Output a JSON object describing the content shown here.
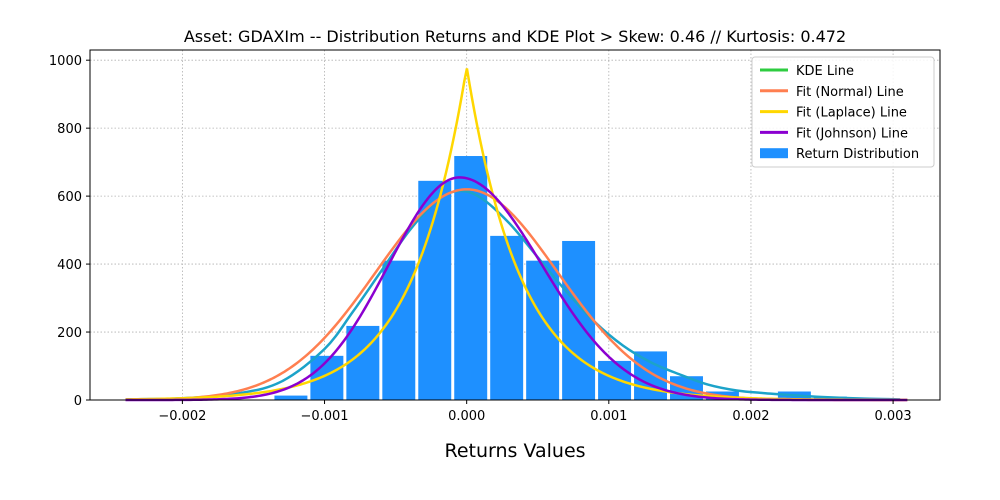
{
  "chart_data": {
    "type": "bar",
    "title": "Asset: GDAXIm -- Distribution Returns and KDE Plot > Skew: 0.46 // Kurtosis: 0.472",
    "xlabel": "Returns Values",
    "ylabel": "",
    "xlim": [
      -0.00265,
      0.00333
    ],
    "ylim": [
      0,
      1030
    ],
    "xticks": [
      -0.002,
      -0.001,
      0.0,
      0.001,
      0.002,
      0.003
    ],
    "xtick_labels": [
      "−0.002",
      "−0.001",
      "0.000",
      "0.001",
      "0.002",
      "0.003"
    ],
    "yticks": [
      0,
      200,
      400,
      600,
      800,
      1000
    ],
    "ytick_labels": [
      "0",
      "200",
      "400",
      "600",
      "800",
      "1000"
    ],
    "grid": true,
    "legend_position": "top-right",
    "histogram": {
      "name": "Return Distribution",
      "color": "#1e90ff",
      "bin_edges": [
        -0.002375,
        -0.002122,
        -0.001869,
        -0.001616,
        -0.001363,
        -0.00111,
        -0.000857,
        -0.000604,
        -0.000351,
        -9.8e-05,
        0.000155,
        0.000408,
        0.000661,
        0.000914,
        0.001167,
        0.00142,
        0.001673,
        0.001926,
        0.002179,
        0.002432,
        0.002685,
        0.002938
      ],
      "counts": [
        3,
        0,
        0,
        0,
        13,
        130,
        218,
        410,
        645,
        718,
        483,
        410,
        468,
        115,
        143,
        70,
        25,
        0,
        25,
        10,
        3
      ]
    },
    "series": [
      {
        "name": "KDE Line",
        "color": "#1ca3c9",
        "legend_color": "#2ecc40",
        "x": [
          -0.0024,
          -0.002,
          -0.0016,
          -0.0013,
          -0.001,
          -0.0008,
          -0.0006,
          -0.0004,
          -0.0002,
          -5e-05,
          0.0001,
          0.0003,
          0.0005,
          0.0007,
          0.0009,
          0.0011,
          0.0013,
          0.0015,
          0.0017,
          0.0019,
          0.0021,
          0.0023,
          0.0025,
          0.0028,
          0.00305
        ],
        "y": [
          2,
          5,
          20,
          55,
          150,
          260,
          380,
          500,
          590,
          615,
          595,
          520,
          420,
          320,
          230,
          160,
          110,
          75,
          45,
          28,
          20,
          14,
          9,
          4,
          2
        ]
      },
      {
        "name": "Fit (Normal) Line",
        "color": "#ff7f50",
        "mean": 0.0,
        "std": 0.00064,
        "peak": 620,
        "x_range": [
          -0.0024,
          0.0031
        ]
      },
      {
        "name": "Fit (Laplace) Line",
        "color": "#ffd700",
        "loc": 0.0,
        "scale": 0.000381,
        "peak": 980,
        "x_range": [
          -0.0024,
          0.0031
        ]
      },
      {
        "name": "Fit (Johnson) Line",
        "color": "#8b00d0",
        "mode": -5e-05,
        "std_left": 0.0005,
        "std_right": 0.00058,
        "peak": 655,
        "x_range": [
          -0.0024,
          0.0031
        ]
      }
    ]
  }
}
